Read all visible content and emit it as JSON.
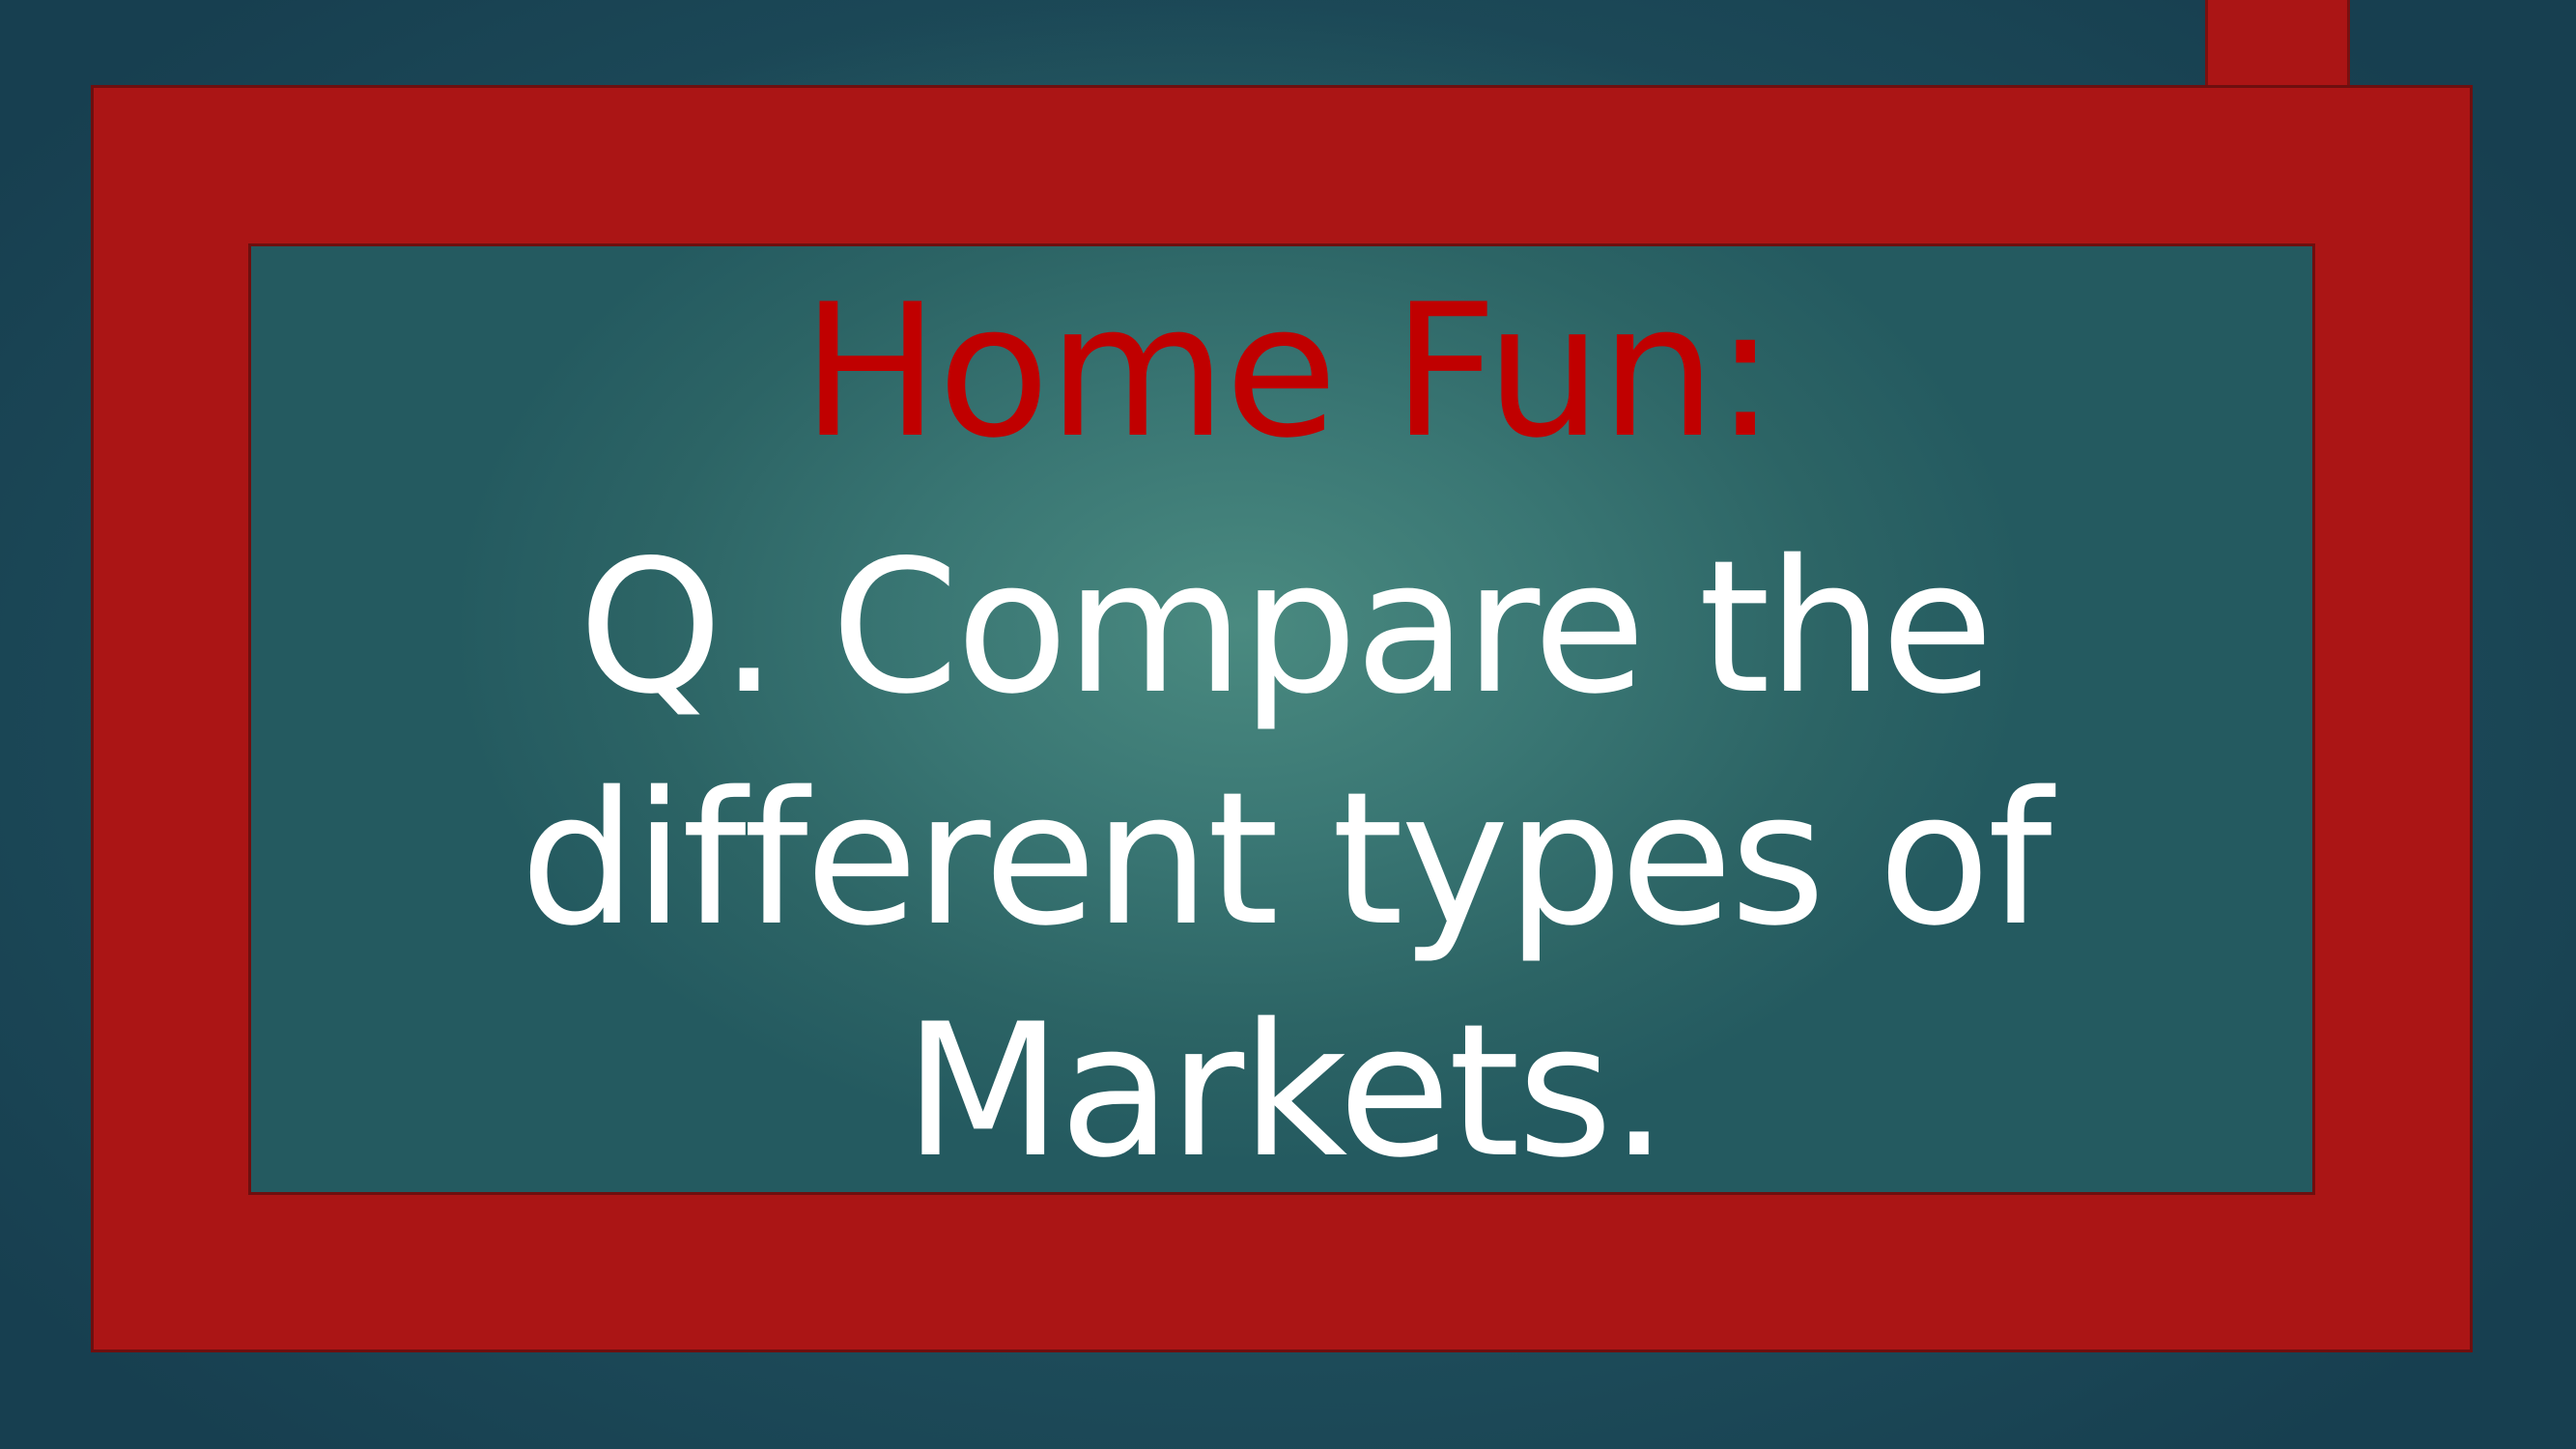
{
  "slide": {
    "heading": "Home Fun:",
    "question_lines": [
      "Q. Compare the",
      "different types of",
      "Markets."
    ],
    "colors": {
      "background": "#1f4f5c",
      "frame": "#ab1515",
      "heading_text": "#c00000",
      "body_text": "#ffffff"
    }
  }
}
